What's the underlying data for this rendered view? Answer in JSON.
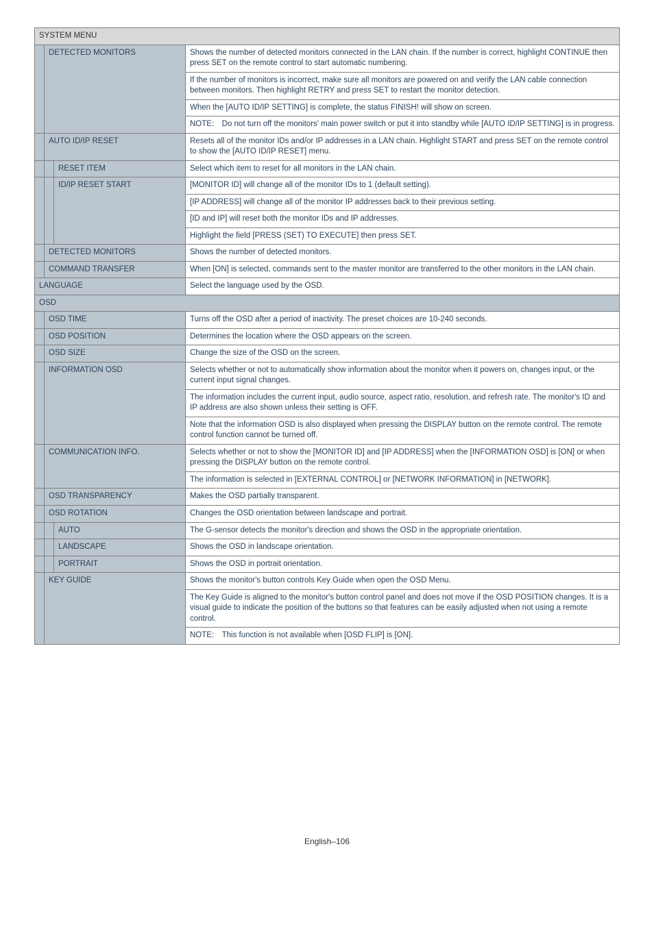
{
  "title": "SYSTEM MENU",
  "rows": [
    {
      "label": "DETECTED MONITORS",
      "indent": 1,
      "paras": [
        "Shows the number of detected monitors connected in the LAN chain. If the number is correct, highlight CONTINUE then press SET on the remote control to start automatic numbering.",
        "If the number of monitors is incorrect, make sure all monitors are powered on and verify the LAN cable connection between monitors. Then highlight RETRY and press SET to restart the monitor detection.",
        "When the [AUTO ID/IP SETTING] is complete, the status FINISH! will show on screen.",
        "NOTE: Do not turn off the monitors' main power switch or put it into standby while [AUTO ID/IP SETTING] is in progress."
      ]
    },
    {
      "label": "AUTO ID/IP RESET",
      "indent": 1,
      "paras": [
        "Resets all of the monitor IDs and/or IP addresses in a LAN chain. Highlight START and press SET on the remote control to show the [AUTO ID/IP RESET] menu."
      ]
    },
    {
      "label": "RESET ITEM",
      "indent": 2,
      "paras": [
        "Select which item to reset for all monitors in the LAN chain."
      ]
    },
    {
      "label": "ID/IP RESET START",
      "indent": 2,
      "paras": [
        "[MONITOR ID] will change all of the monitor IDs to 1 (default setting).",
        "[IP ADDRESS] will change all of the monitor IP addresses back to their previous setting.",
        "[ID and IP] will reset both the monitor IDs and IP addresses.",
        "Highlight the field [PRESS (SET) TO EXECUTE] then press SET."
      ]
    },
    {
      "label": "DETECTED MONITORS",
      "indent": 1,
      "paras": [
        "Shows the number of detected monitors."
      ]
    },
    {
      "label": "COMMAND TRANSFER",
      "indent": 1,
      "paras": [
        "When [ON] is selected, commands sent to the master monitor are transferred to the other monitors in the LAN chain."
      ]
    },
    {
      "label": "LANGUAGE",
      "indent": 0,
      "paras": [
        "Select the language used by the OSD."
      ]
    },
    {
      "label": "OSD",
      "indent": 0,
      "paras": [
        ""
      ],
      "full": true
    },
    {
      "label": "OSD TIME",
      "indent": 1,
      "paras": [
        "Turns off the OSD after a period of inactivity. The preset choices are 10-240 seconds."
      ]
    },
    {
      "label": "OSD POSITION",
      "indent": 1,
      "paras": [
        "Determines the location where the OSD appears on the screen."
      ]
    },
    {
      "label": "OSD SIZE",
      "indent": 1,
      "paras": [
        "Change the size of the OSD on the screen."
      ]
    },
    {
      "label": "INFORMATION OSD",
      "indent": 1,
      "paras": [
        "Selects whether or not to automatically show information about the monitor when it powers on, changes input, or the current input signal changes.",
        "The information includes the current input, audio source, aspect ratio, resolution, and refresh rate. The monitor's ID and IP address are also shown unless their setting is OFF.",
        "Note that the information OSD is also displayed when pressing the DISPLAY button on the remote control. The remote control function cannot be turned off."
      ]
    },
    {
      "label": "COMMUNICATION INFO.",
      "indent": 1,
      "paras": [
        "Selects whether or not to show the [MONITOR ID] and [IP ADDRESS] when the [INFORMATION OSD] is [ON] or when pressing the DISPLAY button on the remote control.",
        "The information is selected in [EXTERNAL CONTROL] or [NETWORK INFORMATION] in [NETWORK]."
      ]
    },
    {
      "label": "OSD TRANSPARENCY",
      "indent": 1,
      "paras": [
        "Makes the OSD partially transparent."
      ]
    },
    {
      "label": "OSD ROTATION",
      "indent": 1,
      "paras": [
        "Changes the OSD orientation between landscape and portrait."
      ]
    },
    {
      "label": "AUTO",
      "indent": 2,
      "paras": [
        "The G-sensor detects the monitor's direction and shows the OSD in the appropriate orientation."
      ]
    },
    {
      "label": "LANDSCAPE",
      "indent": 2,
      "paras": [
        "Shows the OSD in landscape orientation."
      ]
    },
    {
      "label": "PORTRAIT",
      "indent": 2,
      "paras": [
        "Shows the OSD in portrait orientation."
      ]
    },
    {
      "label": "KEY GUIDE",
      "indent": 1,
      "paras": [
        "Shows the monitor's button controls Key Guide when open the OSD Menu.",
        "The Key Guide is aligned to the monitor's button control panel and does not move if the OSD POSITION changes. It is a visual guide to indicate the position of the buttons so that features can be easily adjusted when not using a remote control.",
        "NOTE: This function is not available when [OSD FLIP] is [ON]."
      ]
    }
  ],
  "footer": "English–106",
  "colors": {
    "header_bg": "#d9d9d9",
    "label_bg": "#bcc6cf",
    "text": "#2a4158",
    "border": "#808080"
  }
}
